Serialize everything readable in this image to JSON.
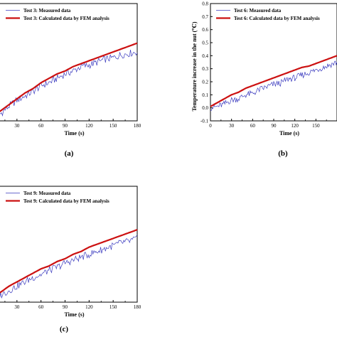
{
  "chart_data": [
    {
      "type": "line",
      "panel_label": "(a)",
      "xlabel": "Time (s)",
      "ylabel": "",
      "xlim": [
        0,
        180
      ],
      "xticks": [
        30,
        60,
        90,
        120,
        150,
        180
      ],
      "xtick_labels": [
        "30",
        "60",
        "90",
        "120",
        "150",
        "180"
      ],
      "ylim": [
        0,
        0.8
      ],
      "legend_position": "top-left",
      "series": [
        {
          "name": "Test 3: Measured data",
          "color": "#3b3bbf",
          "x": [
            0,
            10,
            20,
            30,
            40,
            50,
            60,
            70,
            80,
            90,
            100,
            110,
            120,
            130,
            140,
            150,
            160,
            170,
            180
          ],
          "y": [
            0.02,
            0.05,
            0.1,
            0.14,
            0.17,
            0.2,
            0.24,
            0.26,
            0.29,
            0.32,
            0.34,
            0.37,
            0.38,
            0.4,
            0.42,
            0.43,
            0.45,
            0.46,
            0.47
          ]
        },
        {
          "name": "Test 3: Calculated data by FEM analysis",
          "color": "#cc1111",
          "x": [
            0,
            10,
            20,
            30,
            40,
            50,
            60,
            70,
            80,
            90,
            100,
            110,
            120,
            130,
            140,
            150,
            160,
            170,
            180
          ],
          "y": [
            0.03,
            0.07,
            0.11,
            0.15,
            0.19,
            0.22,
            0.26,
            0.29,
            0.32,
            0.34,
            0.37,
            0.39,
            0.41,
            0.43,
            0.45,
            0.47,
            0.49,
            0.51,
            0.53
          ]
        }
      ]
    },
    {
      "type": "line",
      "panel_label": "(b)",
      "xlabel": "Time (s)",
      "ylabel": "Temperature increase in the nut (℃)",
      "xlim": [
        0,
        180
      ],
      "xticks": [
        0,
        30,
        60,
        90,
        120,
        150
      ],
      "xtick_labels": [
        "0",
        "30",
        "60",
        "90",
        "120",
        "150"
      ],
      "ylim": [
        -0.1,
        0.8
      ],
      "yticks": [
        -0.1,
        0.0,
        0.1,
        0.2,
        0.3,
        0.4,
        0.5,
        0.6,
        0.7,
        0.8
      ],
      "ytick_labels": [
        "-0.1",
        "0.0",
        "0.1",
        "0.2",
        "0.3",
        "0.4",
        "0.5",
        "0.6",
        "0.7",
        "0.8"
      ],
      "legend_position": "top-left",
      "series": [
        {
          "name": "Test 6: Measured data",
          "color": "#3b3bbf",
          "x": [
            0,
            10,
            20,
            30,
            40,
            50,
            60,
            70,
            80,
            90,
            100,
            110,
            120,
            130,
            140,
            150,
            160,
            170,
            180
          ],
          "y": [
            0.0,
            0.01,
            0.03,
            0.06,
            0.07,
            0.1,
            0.11,
            0.14,
            0.16,
            0.18,
            0.19,
            0.22,
            0.23,
            0.25,
            0.27,
            0.29,
            0.31,
            0.33,
            0.35
          ]
        },
        {
          "name": "Test 6: Calculated data by FEM analysis",
          "color": "#cc1111",
          "x": [
            0,
            10,
            20,
            30,
            40,
            50,
            60,
            70,
            80,
            90,
            100,
            110,
            120,
            130,
            140,
            150,
            160,
            170,
            180
          ],
          "y": [
            0.01,
            0.04,
            0.07,
            0.1,
            0.12,
            0.15,
            0.17,
            0.19,
            0.21,
            0.23,
            0.25,
            0.27,
            0.29,
            0.31,
            0.32,
            0.34,
            0.36,
            0.38,
            0.4
          ]
        }
      ]
    },
    {
      "type": "line",
      "panel_label": "(c)",
      "xlabel": "Time (s)",
      "ylabel": "",
      "xlim": [
        0,
        180
      ],
      "xticks": [
        30,
        60,
        90,
        120,
        150,
        180
      ],
      "xtick_labels": [
        "30",
        "60",
        "90",
        "120",
        "150",
        "180"
      ],
      "ylim": [
        0,
        0.8
      ],
      "legend_position": "top-left",
      "series": [
        {
          "name": "Test 9: Measured data",
          "color": "#3b3bbf",
          "x": [
            0,
            10,
            20,
            30,
            40,
            50,
            60,
            70,
            80,
            90,
            100,
            110,
            120,
            130,
            140,
            150,
            160,
            170,
            180
          ],
          "y": [
            0.02,
            0.05,
            0.08,
            0.11,
            0.14,
            0.17,
            0.19,
            0.22,
            0.24,
            0.27,
            0.29,
            0.31,
            0.33,
            0.35,
            0.37,
            0.39,
            0.41,
            0.42,
            0.44
          ]
        },
        {
          "name": "Test 9: Calculated data by FEM analysis",
          "color": "#cc1111",
          "x": [
            0,
            10,
            20,
            30,
            40,
            50,
            60,
            70,
            80,
            90,
            100,
            110,
            120,
            130,
            140,
            150,
            160,
            170,
            180
          ],
          "y": [
            0.04,
            0.07,
            0.11,
            0.14,
            0.17,
            0.2,
            0.23,
            0.25,
            0.28,
            0.3,
            0.33,
            0.35,
            0.38,
            0.4,
            0.42,
            0.44,
            0.46,
            0.48,
            0.5
          ]
        }
      ]
    }
  ]
}
